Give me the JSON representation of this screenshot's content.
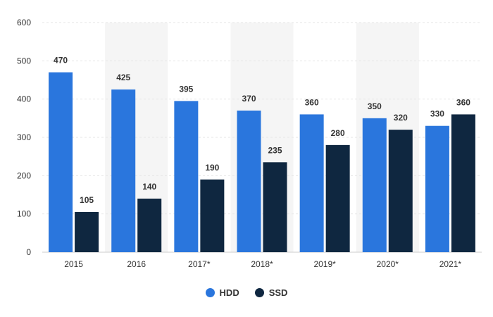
{
  "chart_data": {
    "type": "bar",
    "categories": [
      "2015",
      "2016",
      "2017*",
      "2018*",
      "2019*",
      "2020*",
      "2021*"
    ],
    "series": [
      {
        "name": "HDD",
        "values": [
          470,
          425,
          395,
          370,
          360,
          350,
          330
        ],
        "color": "#2a76dd"
      },
      {
        "name": "SSD",
        "values": [
          105,
          140,
          190,
          235,
          280,
          320,
          360
        ],
        "color": "#0f2740"
      }
    ],
    "title": "",
    "xlabel": "",
    "ylabel": "",
    "ylim": [
      0,
      600
    ],
    "yticks": [
      0,
      100,
      200,
      300,
      400,
      500,
      600
    ],
    "grid": true,
    "alternating_column_shading": true,
    "legend_position": "bottom-center"
  }
}
